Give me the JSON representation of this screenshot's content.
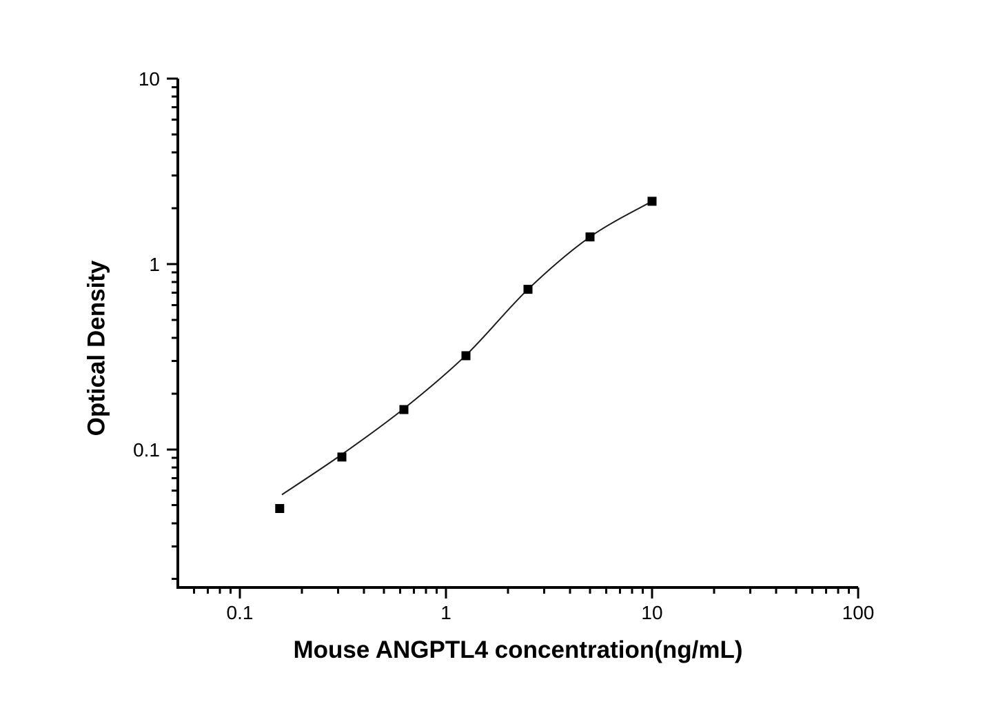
{
  "chart_data": {
    "type": "scatter",
    "title": "",
    "xlabel": "Mouse ANGPTL4 concentration(ng/mL)",
    "ylabel": "Optical Density",
    "x_scale": "log",
    "y_scale": "log",
    "xlim": [
      0.05,
      100
    ],
    "ylim": [
      0.018,
      10
    ],
    "x_major_ticks": [
      0.1,
      1,
      10,
      100
    ],
    "x_major_tick_labels": [
      "0.1",
      "1",
      "10",
      "100"
    ],
    "y_major_ticks": [
      0.1,
      1,
      10
    ],
    "y_major_tick_labels": [
      "0.1",
      "1",
      "10"
    ],
    "grid": "off",
    "legend": "none",
    "points": [
      {
        "x": 0.156,
        "y": 0.048
      },
      {
        "x": 0.3125,
        "y": 0.091
      },
      {
        "x": 0.625,
        "y": 0.164
      },
      {
        "x": 1.25,
        "y": 0.32
      },
      {
        "x": 2.5,
        "y": 0.73
      },
      {
        "x": 5,
        "y": 1.4
      },
      {
        "x": 10,
        "y": 2.18
      }
    ],
    "curve": [
      {
        "x": 0.16,
        "y": 0.057
      },
      {
        "x": 0.3125,
        "y": 0.094
      },
      {
        "x": 0.625,
        "y": 0.166
      },
      {
        "x": 1.25,
        "y": 0.322
      },
      {
        "x": 2.5,
        "y": 0.73
      },
      {
        "x": 5,
        "y": 1.4
      },
      {
        "x": 10,
        "y": 2.18
      }
    ],
    "marker": {
      "shape": "square",
      "size": 13,
      "color": "#000000"
    },
    "line_color": "#1c1c1c",
    "axis_color": "#000000",
    "background": "#ffffff"
  }
}
